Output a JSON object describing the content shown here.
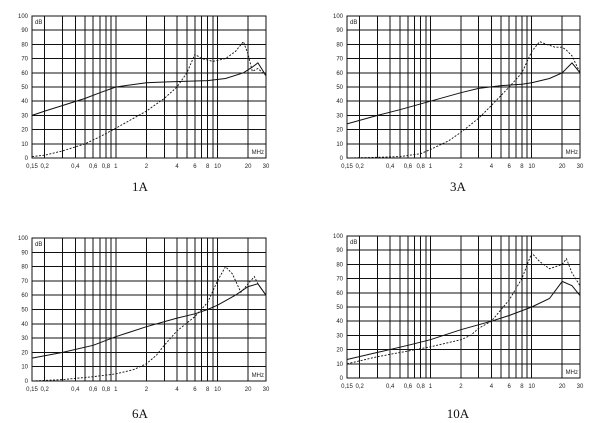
{
  "chart_data": [
    {
      "type": "line",
      "title": "1A",
      "ylabel": "dB",
      "xlabel": "MHz",
      "ylim": [
        0,
        100
      ],
      "xlim": [
        0.15,
        30
      ],
      "x_scale": "log",
      "yticks": [
        "0",
        "10",
        "20",
        "30",
        "40",
        "50",
        "60",
        "70",
        "80",
        "90",
        "100"
      ],
      "xticks": [
        "0,15",
        "0,2",
        "0,4",
        "0,6",
        "0,8",
        "1",
        "2",
        "4",
        "6",
        "8",
        "10",
        "20",
        "30"
      ],
      "series": [
        {
          "style": "solid",
          "x": [
            0.15,
            0.2,
            0.3,
            0.5,
            0.7,
            1,
            2,
            3,
            5,
            8,
            12,
            18,
            22,
            25,
            30
          ],
          "y": [
            30,
            33,
            37,
            42,
            46,
            50,
            53,
            53.5,
            54,
            54.5,
            56,
            60,
            64,
            67,
            58
          ]
        },
        {
          "style": "dashed",
          "x": [
            0.15,
            0.2,
            0.3,
            0.5,
            0.7,
            1,
            1.5,
            2,
            3,
            4,
            5,
            6,
            7,
            9,
            12,
            15,
            18,
            20,
            22,
            25,
            30
          ],
          "y": [
            1,
            2,
            5,
            10,
            15,
            21,
            28,
            33,
            42,
            50,
            60,
            73,
            70,
            68,
            70,
            75,
            82,
            73,
            61,
            63,
            58
          ]
        }
      ]
    },
    {
      "type": "line",
      "title": "3A",
      "ylabel": "dB",
      "xlabel": "MHz",
      "ylim": [
        0,
        100
      ],
      "xlim": [
        0.15,
        30
      ],
      "x_scale": "log",
      "yticks": [
        "0",
        "10",
        "20",
        "30",
        "40",
        "50",
        "60",
        "70",
        "80",
        "90",
        "100"
      ],
      "xticks": [
        "0,15",
        "0,2",
        "0,4",
        "0,6",
        "0,8",
        "1",
        "2",
        "4",
        "6",
        "8",
        "10",
        "20",
        "30"
      ],
      "series": [
        {
          "style": "solid",
          "x": [
            0.15,
            0.3,
            0.5,
            1,
            2,
            3,
            5,
            8,
            10,
            15,
            20,
            25,
            30
          ],
          "y": [
            24,
            30,
            34,
            40,
            46,
            49,
            51,
            52,
            53,
            56,
            60,
            67,
            60
          ]
        },
        {
          "style": "dashed",
          "x": [
            0.15,
            0.3,
            0.5,
            0.8,
            1,
            1.5,
            2,
            3,
            4,
            6,
            8,
            10,
            12,
            14,
            17,
            20,
            22,
            25,
            30
          ],
          "y": [
            0,
            0.5,
            1,
            3,
            6,
            12,
            18,
            28,
            37,
            50,
            60,
            75,
            82,
            80,
            78,
            78,
            76,
            72,
            60
          ]
        }
      ]
    },
    {
      "type": "line",
      "title": "6A",
      "ylabel": "dB",
      "xlabel": "MHz",
      "ylim": [
        0,
        100
      ],
      "xlim": [
        0.15,
        30
      ],
      "x_scale": "log",
      "yticks": [
        "0",
        "10",
        "20",
        "30",
        "40",
        "50",
        "60",
        "70",
        "80",
        "90",
        "100"
      ],
      "xticks": [
        "0,15",
        "0,2",
        "0,4",
        "0,6",
        "0,8",
        "1",
        "2",
        "4",
        "6",
        "8",
        "10",
        "20",
        "30"
      ],
      "series": [
        {
          "style": "solid",
          "x": [
            0.15,
            0.3,
            0.6,
            1,
            2,
            4,
            6,
            8,
            10,
            15,
            20,
            25,
            30
          ],
          "y": [
            16,
            20,
            25,
            31,
            38,
            44,
            47,
            50,
            53,
            60,
            66,
            68,
            60
          ]
        },
        {
          "style": "dashed",
          "x": [
            0.15,
            0.3,
            0.6,
            1,
            1.5,
            2,
            2.5,
            3,
            4,
            6,
            8,
            10,
            12,
            14,
            17,
            20,
            23,
            25,
            30
          ],
          "y": [
            0,
            1,
            3,
            5,
            8,
            12,
            18,
            25,
            35,
            45,
            55,
            70,
            80,
            75,
            62,
            68,
            73,
            68,
            60
          ]
        }
      ]
    },
    {
      "type": "line",
      "title": "10A",
      "ylabel": "dB",
      "xlabel": "MHz",
      "ylim": [
        0,
        100
      ],
      "xlim": [
        0.15,
        30
      ],
      "x_scale": "log",
      "yticks": [
        "0",
        "10",
        "20",
        "30",
        "40",
        "50",
        "60",
        "70",
        "80",
        "90",
        "100"
      ],
      "xticks": [
        "0,15",
        "0,2",
        "0,4",
        "0,6",
        "0,8",
        "1",
        "2",
        "4",
        "6",
        "8",
        "10",
        "20",
        "30"
      ],
      "series": [
        {
          "style": "solid",
          "x": [
            0.15,
            0.3,
            0.6,
            1,
            2,
            4,
            6,
            10,
            15,
            20,
            25,
            30
          ],
          "y": [
            13,
            18,
            23,
            27,
            34,
            40,
            44,
            50,
            56,
            68,
            65,
            58
          ]
        },
        {
          "style": "dashed",
          "x": [
            0.15,
            0.3,
            0.6,
            1,
            2,
            2.5,
            3,
            4,
            6,
            8,
            10,
            12,
            15,
            20,
            22,
            25,
            30
          ],
          "y": [
            10,
            15,
            19,
            22,
            27,
            30,
            35,
            40,
            55,
            70,
            88,
            82,
            77,
            80,
            84,
            74,
            65
          ]
        }
      ]
    }
  ]
}
